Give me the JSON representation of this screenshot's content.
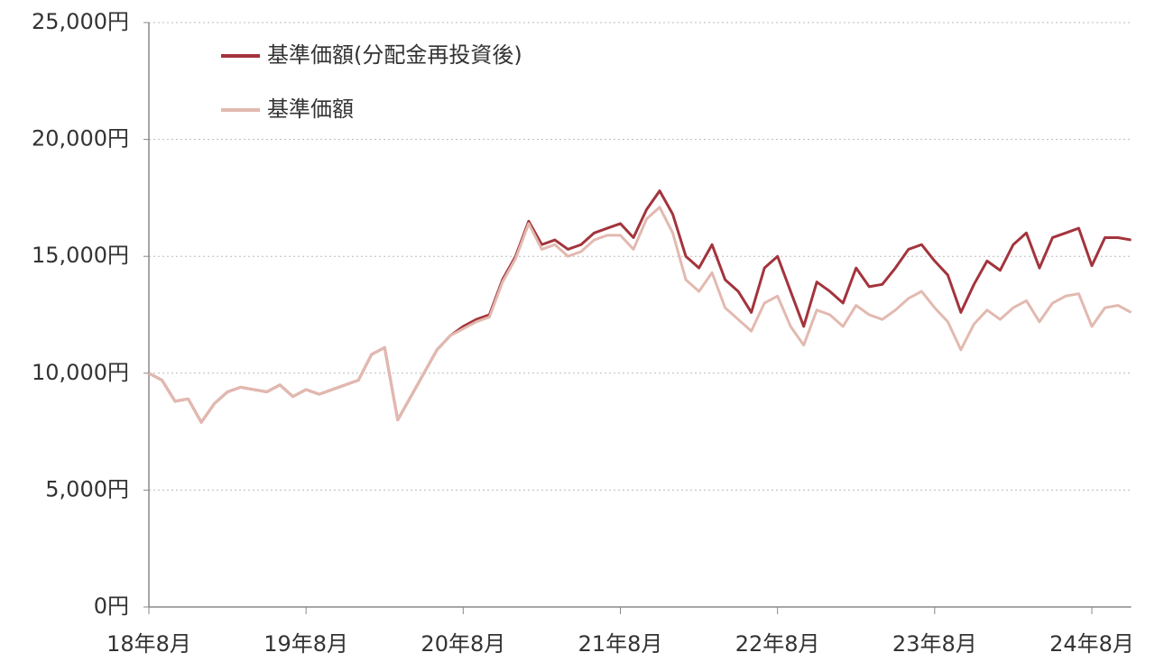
{
  "chart_data": {
    "type": "line",
    "categories": [
      "18年8月",
      null,
      null,
      null,
      null,
      null,
      null,
      null,
      null,
      null,
      null,
      null,
      "19年8月",
      null,
      null,
      null,
      null,
      null,
      null,
      null,
      null,
      null,
      null,
      null,
      "20年8月",
      null,
      null,
      null,
      null,
      null,
      null,
      null,
      null,
      null,
      null,
      null,
      "21年8月",
      null,
      null,
      null,
      null,
      null,
      null,
      null,
      null,
      null,
      null,
      null,
      "22年8月",
      null,
      null,
      null,
      null,
      null,
      null,
      null,
      null,
      null,
      null,
      null,
      "23年8月",
      null,
      null,
      null,
      null,
      null,
      null,
      null,
      null,
      null,
      null,
      null,
      "24年8月",
      null,
      null,
      null
    ],
    "series": [
      {
        "name": "基準価額(分配金再投資後)",
        "color": "#a3343c",
        "values": [
          10000,
          9700,
          8800,
          8900,
          7900,
          8700,
          9200,
          9400,
          9300,
          9200,
          9500,
          9000,
          9300,
          9100,
          9300,
          9500,
          9700,
          10800,
          11100,
          8000,
          9000,
          10000,
          11000,
          11600,
          12000,
          12300,
          12500,
          14000,
          15000,
          16500,
          15500,
          15700,
          15300,
          15500,
          16000,
          16200,
          16400,
          15800,
          17000,
          17800,
          16800,
          15000,
          14500,
          15500,
          14000,
          13500,
          12600,
          14500,
          15000,
          13500,
          12000,
          13900,
          13500,
          13000,
          14500,
          13700,
          13800,
          14500,
          15300,
          15500,
          14800,
          14200,
          12600,
          13800,
          14800,
          14400,
          15500,
          16000,
          14500,
          15800,
          16000,
          16200,
          14600,
          15800,
          15800,
          15700
        ]
      },
      {
        "name": "基準価額",
        "color": "#e2b9b0",
        "values": [
          10000,
          9700,
          8800,
          8900,
          7900,
          8700,
          9200,
          9400,
          9300,
          9200,
          9500,
          9000,
          9300,
          9100,
          9300,
          9500,
          9700,
          10800,
          11100,
          8000,
          9000,
          10000,
          11000,
          11600,
          11900,
          12200,
          12400,
          13900,
          14900,
          16400,
          15300,
          15500,
          15000,
          15200,
          15700,
          15900,
          15900,
          15300,
          16600,
          17100,
          16000,
          14000,
          13500,
          14300,
          12800,
          12300,
          11800,
          13000,
          13300,
          12000,
          11200,
          12700,
          12500,
          12000,
          12900,
          12500,
          12300,
          12700,
          13200,
          13500,
          12800,
          12200,
          11000,
          12100,
          12700,
          12300,
          12800,
          13100,
          12200,
          13000,
          13300,
          13400,
          12000,
          12800,
          12900,
          12600
        ]
      }
    ],
    "ylim": [
      0,
      25000
    ],
    "yticks": [
      {
        "value": 0,
        "label": "0円"
      },
      {
        "value": 5000,
        "label": "5,000円"
      },
      {
        "value": 10000,
        "label": "10,000円"
      },
      {
        "value": 15000,
        "label": "15,000円"
      },
      {
        "value": 20000,
        "label": "20,000円"
      },
      {
        "value": 25000,
        "label": "25,000円"
      }
    ],
    "grid": true,
    "legend": "top-left"
  }
}
